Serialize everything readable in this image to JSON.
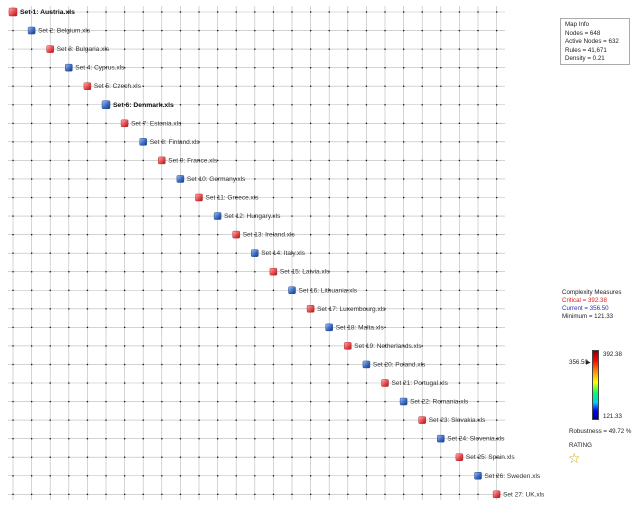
{
  "map": {
    "nodes": [
      {
        "label": "Set 1: Austria.xls",
        "color": "red",
        "bold": true
      },
      {
        "label": "Set 2: Belgium.xls",
        "color": "blue",
        "bold": false
      },
      {
        "label": "Set 3: Bulgaria.xls",
        "color": "red",
        "bold": false
      },
      {
        "label": "Set 4: Cyprus.xls",
        "color": "blue",
        "bold": false
      },
      {
        "label": "Set 5: Czech.xls",
        "color": "red",
        "bold": false
      },
      {
        "label": "Set 6: Denmark.xls",
        "color": "blue",
        "bold": true
      },
      {
        "label": "Set 7: Estonia.xls",
        "color": "red",
        "bold": false
      },
      {
        "label": "Set 8: Finland.xls",
        "color": "blue",
        "bold": false
      },
      {
        "label": "Set 9: France.xls",
        "color": "red",
        "bold": false
      },
      {
        "label": "Set 10: Germany.xls",
        "color": "blue",
        "bold": false
      },
      {
        "label": "Set 11: Greece.xls",
        "color": "red",
        "bold": false
      },
      {
        "label": "Set 12: Hungary.xls",
        "color": "blue",
        "bold": false
      },
      {
        "label": "Set 13: Ireland.xls",
        "color": "red",
        "bold": false
      },
      {
        "label": "Set 14: Italy.xls",
        "color": "blue",
        "bold": false
      },
      {
        "label": "Set 15: Latvia.xls",
        "color": "red",
        "bold": false
      },
      {
        "label": "Set 16: Lithuania.xls",
        "color": "blue",
        "bold": false
      },
      {
        "label": "Set 17: Luxembourg.xls",
        "color": "red",
        "bold": false
      },
      {
        "label": "Set 18: Malta.xls",
        "color": "blue",
        "bold": false
      },
      {
        "label": "Set 19: Netherlands.xls",
        "color": "red",
        "bold": false
      },
      {
        "label": "Set 20: Poland.xls",
        "color": "blue",
        "bold": false
      },
      {
        "label": "Set 21: Portugal.xls",
        "color": "red",
        "bold": false
      },
      {
        "label": "Set 22: Romania.xls",
        "color": "blue",
        "bold": false
      },
      {
        "label": "Set 23: Slovakia.xls",
        "color": "red",
        "bold": false
      },
      {
        "label": "Set 24: Slovenia.xls",
        "color": "blue",
        "bold": false
      },
      {
        "label": "Set 25: Spain.xls",
        "color": "red",
        "bold": false
      },
      {
        "label": "Set 26: Sweden.xls",
        "color": "blue",
        "bold": false
      },
      {
        "label": "Set 27: UK.xls",
        "color": "red",
        "bold": false
      }
    ]
  },
  "info": {
    "title": "Map Info",
    "nodes": "Nodes = 648",
    "active_nodes": "Active Nodes = 632",
    "rules": "Rules = 41,671",
    "density": "Density = 0.21"
  },
  "complexity": {
    "title": "Complexity Measures",
    "critical": "Critical = 392.38",
    "current": "Current = 356.50",
    "minimum": "Minimum = 121.33"
  },
  "colorbar": {
    "max": "392.38",
    "min": "121.33",
    "current": "356.50"
  },
  "robustness": "Robustness = 49.72 %",
  "rating": {
    "label": "RATING",
    "stars": 1
  },
  "colors": {
    "red_node": "#e8484d",
    "blue_node": "#3a6cc4",
    "grid_line": "#b9b9b9",
    "grid_dot": "#111111"
  }
}
